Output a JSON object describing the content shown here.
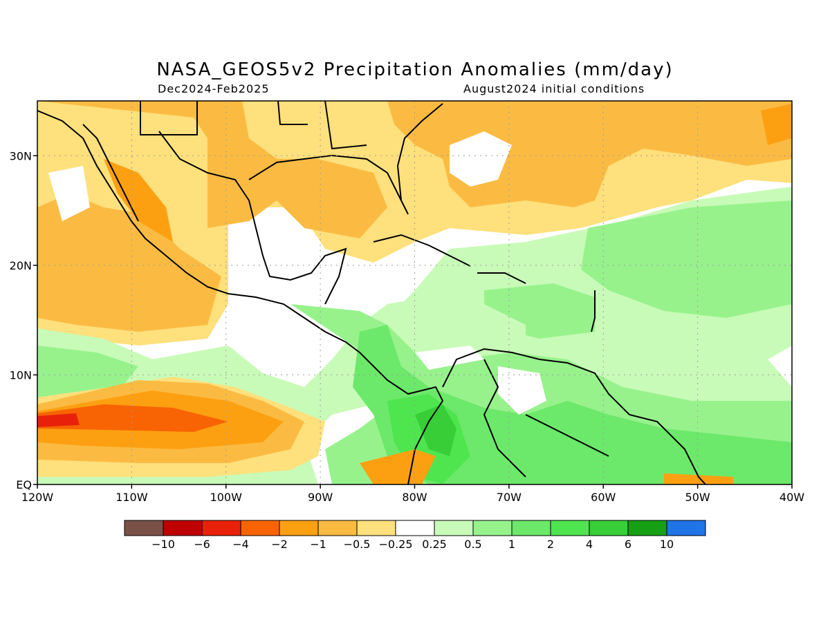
{
  "header": {
    "title": "NASA_GEOS5v2 Precipitation Anomalies (mm/day)",
    "period": "Dec2024-Feb2025",
    "init": "August2024 initial conditions"
  },
  "map": {
    "lon_range": [
      -120,
      -40
    ],
    "lat_range": [
      0,
      35
    ],
    "lon_ticks": [
      {
        "value": -120,
        "label": "120W"
      },
      {
        "value": -110,
        "label": "110W"
      },
      {
        "value": -100,
        "label": "100W"
      },
      {
        "value": -90,
        "label": "90W"
      },
      {
        "value": -80,
        "label": "80W"
      },
      {
        "value": -70,
        "label": "70W"
      },
      {
        "value": -60,
        "label": "60W"
      },
      {
        "value": -50,
        "label": "50W"
      },
      {
        "value": -40,
        "label": "40W"
      }
    ],
    "lat_ticks": [
      {
        "value": 0,
        "label": "EQ"
      },
      {
        "value": 10,
        "label": "10N"
      },
      {
        "value": 20,
        "label": "20N"
      },
      {
        "value": 30,
        "label": "30N"
      }
    ],
    "grid": true
  },
  "colorbar": {
    "colors": [
      "#7a5147",
      "#c00000",
      "#e8220a",
      "#f86404",
      "#fca012",
      "#fbbb42",
      "#fee07c",
      "#ffffff",
      "#c8fbb7",
      "#97f28c",
      "#6ce86a",
      "#4ee54e",
      "#37ce37",
      "#16a016",
      "#2173e8"
    ],
    "labels": [
      "-10",
      "-6",
      "-4",
      "-2",
      "-1",
      "-0.5",
      "-0.25",
      "0.25",
      "0.5",
      "1",
      "2",
      "4",
      "6",
      "10"
    ]
  }
}
